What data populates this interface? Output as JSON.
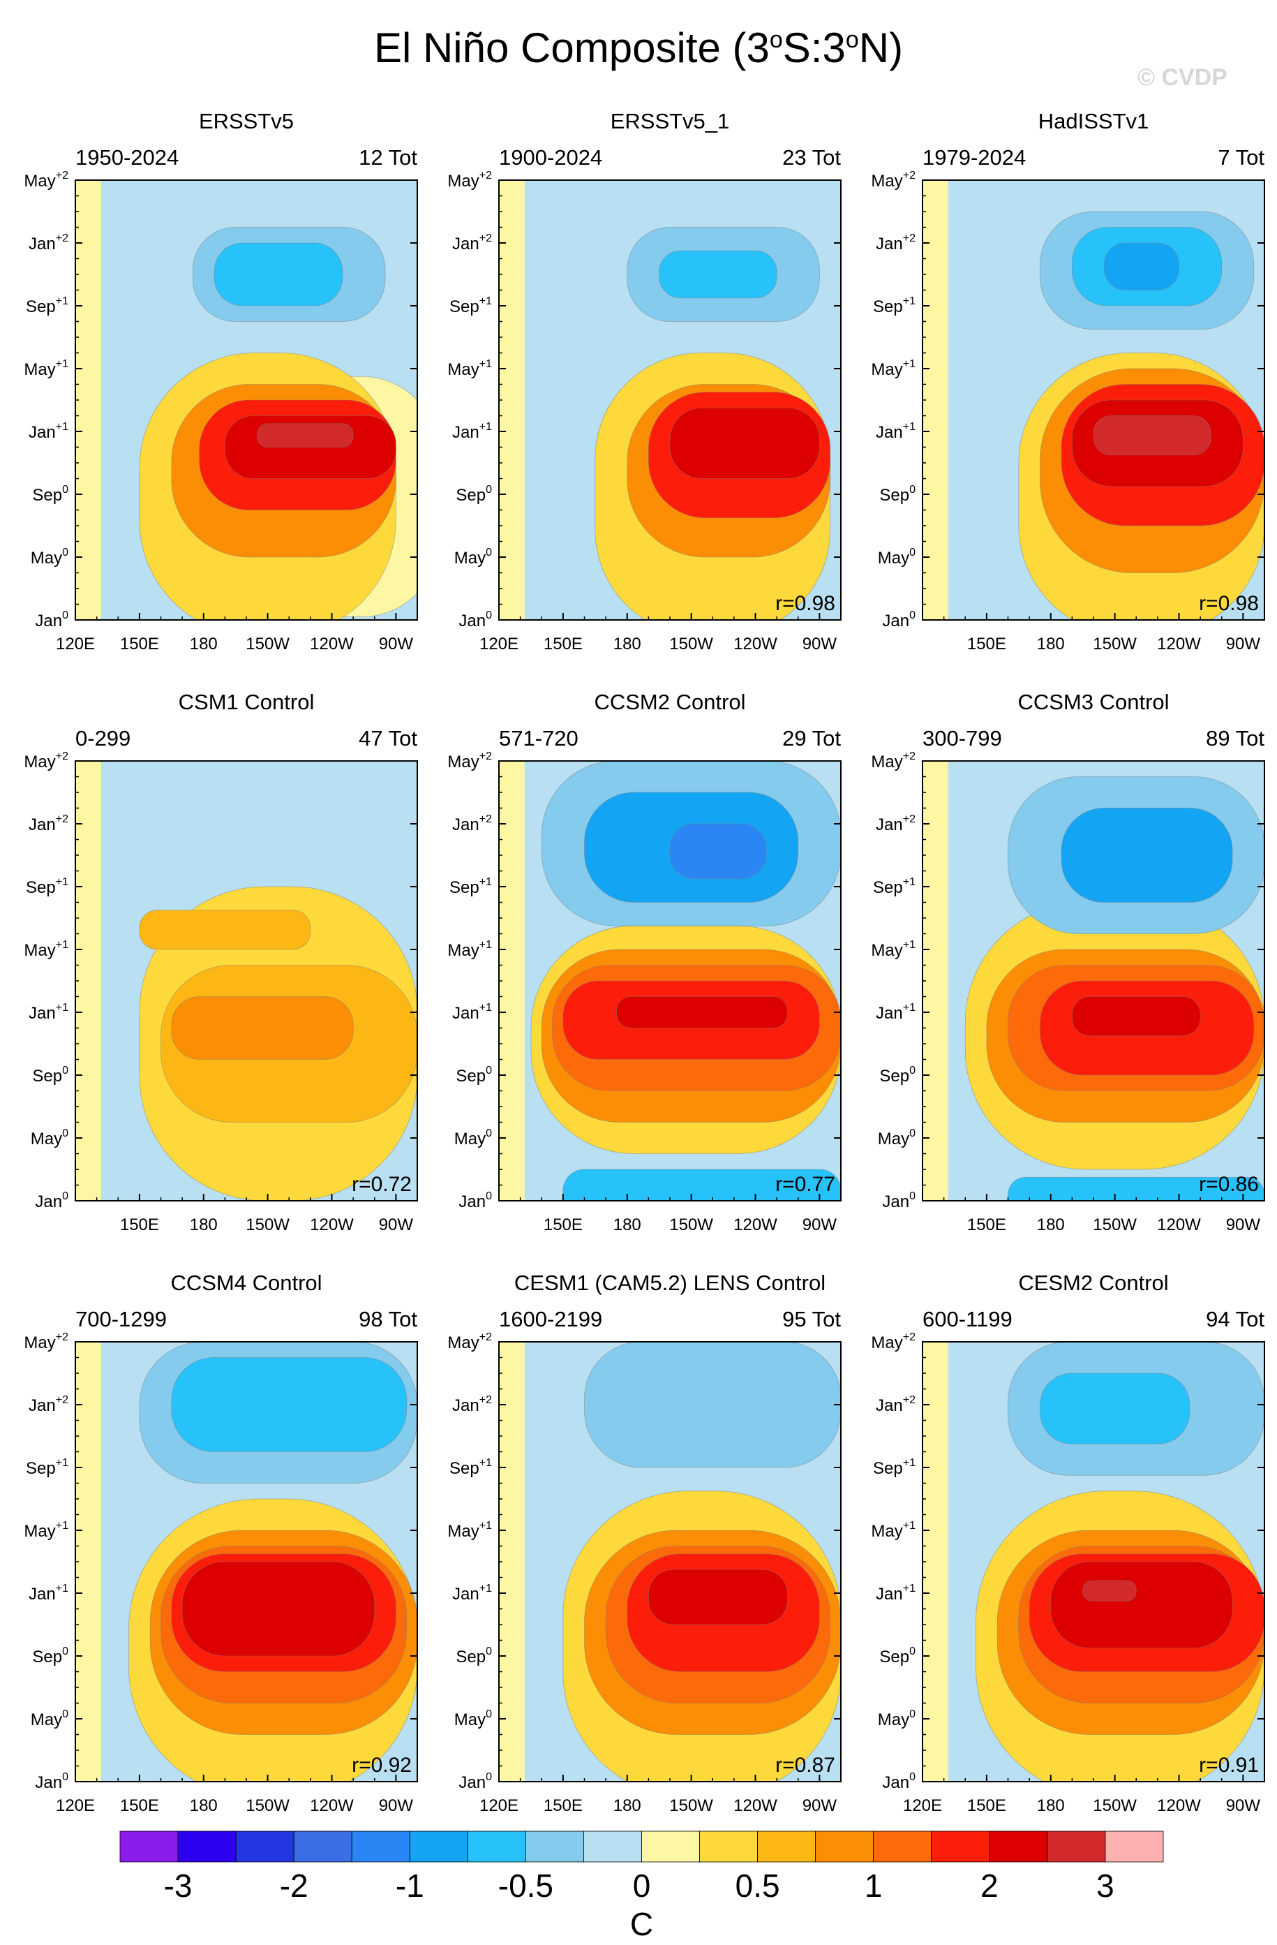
{
  "figure": {
    "title_main": "El Niño Composite (3",
    "title_lat1": "S:3",
    "title_lat2": "N)",
    "degree_symbol": "o",
    "watermark": "© CVDP"
  },
  "chart_data": {
    "type": "heatmap",
    "y_ticks": [
      {
        "month": "Jan",
        "year": "0"
      },
      {
        "month": "May",
        "year": "0"
      },
      {
        "month": "Sep",
        "year": "0"
      },
      {
        "month": "Jan",
        "year": "+1"
      },
      {
        "month": "May",
        "year": "+1"
      },
      {
        "month": "Sep",
        "year": "+1"
      },
      {
        "month": "Jan",
        "year": "+2"
      },
      {
        "month": "May",
        "year": "+2"
      }
    ],
    "x_ticks_full": [
      "120E",
      "150E",
      "180",
      "150W",
      "120W",
      "90W"
    ],
    "colorbar": {
      "unit": "C",
      "tick_labels": [
        "-3",
        "-2",
        "-1",
        "-0.5",
        "0",
        "0.5",
        "1",
        "2",
        "3"
      ],
      "colors": [
        "#8c1cec",
        "#2d00f0",
        "#2236e4",
        "#3a6ee4",
        "#2a86f4",
        "#14a4f4",
        "#28c2fa",
        "#84cbee",
        "#b8dff2",
        "#fdf7a4",
        "#fdd93c",
        "#fcb714",
        "#fc8e06",
        "#fc6a0a",
        "#fc1e0a",
        "#dc0000",
        "#d22a2a",
        "#fcb0b0"
      ]
    },
    "panels": [
      {
        "title": "ERSSTv5",
        "period": "1950-2024",
        "count": "12 Tot",
        "r": "",
        "x_ticks": [
          "120E",
          "150E",
          "180",
          "150W",
          "120W",
          "90W"
        ],
        "features": [
          {
            "level": 9,
            "x": [
              210,
              290
            ],
            "y": [
              0.2,
              15.5
            ],
            "kind": "tongue"
          },
          {
            "level": 10,
            "x": [
              150,
              270
            ],
            "y": [
              -1,
              17
            ],
            "kind": "warm-band"
          },
          {
            "level": 12,
            "x": [
              165,
              270
            ],
            "y": [
              4,
              15
            ],
            "kind": "core"
          },
          {
            "level": 14,
            "x": [
              178,
              270
            ],
            "y": [
              7,
              14
            ],
            "kind": "core"
          },
          {
            "level": 15,
            "x": [
              190,
              270
            ],
            "y": [
              9,
              13
            ],
            "kind": "core"
          },
          {
            "level": 16,
            "x": [
              205,
              250
            ],
            "y": [
              11,
              12.5
            ],
            "kind": "core"
          },
          {
            "level": 7,
            "x": [
              175,
              265
            ],
            "y": [
              19,
              25
            ],
            "kind": "cool"
          },
          {
            "level": 6,
            "x": [
              185,
              245
            ],
            "y": [
              20,
              24
            ],
            "kind": "cool"
          }
        ]
      },
      {
        "title": "ERSSTv5_1",
        "period": "1900-2024",
        "count": "23 Tot",
        "r": "r=0.98",
        "x_ticks": [
          "120E",
          "150E",
          "180",
          "150W",
          "120W",
          "90W"
        ],
        "features": [
          {
            "level": 10,
            "x": [
              165,
              275
            ],
            "y": [
              -1,
              17
            ],
            "kind": "warm-band"
          },
          {
            "level": 12,
            "x": [
              180,
              275
            ],
            "y": [
              4,
              15
            ],
            "kind": "core"
          },
          {
            "level": 14,
            "x": [
              190,
              275
            ],
            "y": [
              6.5,
              14.5
            ],
            "kind": "core"
          },
          {
            "level": 15,
            "x": [
              200,
              270
            ],
            "y": [
              9,
              13.5
            ],
            "kind": "core"
          },
          {
            "level": 7,
            "x": [
              180,
              270
            ],
            "y": [
              19,
              25
            ],
            "kind": "cool"
          },
          {
            "level": 6,
            "x": [
              195,
              250
            ],
            "y": [
              20.5,
              23.5
            ],
            "kind": "cool"
          }
        ]
      },
      {
        "title": "HadISSTv1",
        "period": "1979-2024",
        "count": "7 Tot",
        "r": "r=0.98",
        "x_ticks": [
          "150E",
          "180",
          "150W",
          "120W",
          "90W"
        ],
        "features": [
          {
            "level": 10,
            "x": [
              165,
              280
            ],
            "y": [
              -1,
              17
            ],
            "kind": "warm-band"
          },
          {
            "level": 12,
            "x": [
              175,
              280
            ],
            "y": [
              3,
              16
            ],
            "kind": "core"
          },
          {
            "level": 14,
            "x": [
              185,
              280
            ],
            "y": [
              6,
              15
            ],
            "kind": "core"
          },
          {
            "level": 15,
            "x": [
              190,
              270
            ],
            "y": [
              8.5,
              14
            ],
            "kind": "core"
          },
          {
            "level": 16,
            "x": [
              200,
              255
            ],
            "y": [
              10.5,
              13
            ],
            "kind": "core"
          },
          {
            "level": 7,
            "x": [
              175,
              275
            ],
            "y": [
              18.5,
              26
            ],
            "kind": "cool"
          },
          {
            "level": 6,
            "x": [
              190,
              260
            ],
            "y": [
              20,
              25
            ],
            "kind": "cool"
          },
          {
            "level": 5,
            "x": [
              205,
              240
            ],
            "y": [
              21,
              24
            ],
            "kind": "cool"
          }
        ]
      },
      {
        "title": "CSM1 Control",
        "period": "0-299",
        "count": "47 Tot",
        "r": "r=0.72",
        "x_ticks": [
          "150E",
          "180",
          "150W",
          "120W",
          "90W"
        ],
        "features": [
          {
            "level": 10,
            "x": [
              150,
              280
            ],
            "y": [
              0,
              20
            ],
            "kind": "warm-band"
          },
          {
            "level": 11,
            "x": [
              160,
              280
            ],
            "y": [
              5,
              15
            ],
            "kind": "core"
          },
          {
            "level": 12,
            "x": [
              165,
              250
            ],
            "y": [
              9,
              13
            ],
            "kind": "core"
          },
          {
            "level": 11,
            "x": [
              150,
              230
            ],
            "y": [
              16,
              18.5
            ],
            "kind": "core"
          }
        ]
      },
      {
        "title": "CCSM2 Control",
        "period": "571-720",
        "count": "29 Tot",
        "r": "r=0.77",
        "x_ticks": [
          "150E",
          "180",
          "150W",
          "120W",
          "90W"
        ],
        "features": [
          {
            "level": 10,
            "x": [
              135,
              280
            ],
            "y": [
              3,
              17.5
            ],
            "kind": "warm-band"
          },
          {
            "level": 12,
            "x": [
              140,
              280
            ],
            "y": [
              5,
              16
            ],
            "kind": "core"
          },
          {
            "level": 13,
            "x": [
              145,
              280
            ],
            "y": [
              7,
              15
            ],
            "kind": "core"
          },
          {
            "level": 14,
            "x": [
              150,
              270
            ],
            "y": [
              9,
              14
            ],
            "kind": "core"
          },
          {
            "level": 15,
            "x": [
              175,
              255
            ],
            "y": [
              11,
              13
            ],
            "kind": "core"
          },
          {
            "level": 7,
            "x": [
              140,
              280
            ],
            "y": [
              17.5,
              28
            ],
            "kind": "cool"
          },
          {
            "level": 5,
            "x": [
              160,
              260
            ],
            "y": [
              19,
              26
            ],
            "kind": "cool"
          },
          {
            "level": 4,
            "x": [
              200,
              245
            ],
            "y": [
              20.5,
              24
            ],
            "kind": "cool"
          },
          {
            "level": 6,
            "x": [
              150,
              280
            ],
            "y": [
              -1,
              2
            ],
            "kind": "cool"
          }
        ]
      },
      {
        "title": "CCSM3 Control",
        "period": "300-799",
        "count": "89 Tot",
        "r": "r=0.86",
        "x_ticks": [
          "150E",
          "180",
          "150W",
          "120W",
          "90W"
        ],
        "features": [
          {
            "level": 10,
            "x": [
              140,
              280
            ],
            "y": [
              2,
              19
            ],
            "kind": "warm-band"
          },
          {
            "level": 12,
            "x": [
              150,
              280
            ],
            "y": [
              5,
              16
            ],
            "kind": "core"
          },
          {
            "level": 13,
            "x": [
              160,
              280
            ],
            "y": [
              7,
              15
            ],
            "kind": "core"
          },
          {
            "level": 14,
            "x": [
              175,
              275
            ],
            "y": [
              8,
              14
            ],
            "kind": "core"
          },
          {
            "level": 15,
            "x": [
              190,
              250
            ],
            "y": [
              10.5,
              13
            ],
            "kind": "core"
          },
          {
            "level": 7,
            "x": [
              160,
              280
            ],
            "y": [
              17,
              27
            ],
            "kind": "cool"
          },
          {
            "level": 5,
            "x": [
              185,
              265
            ],
            "y": [
              19,
              25
            ],
            "kind": "cool"
          },
          {
            "level": 6,
            "x": [
              160,
              280
            ],
            "y": [
              -1,
              1.5
            ],
            "kind": "cool"
          }
        ]
      },
      {
        "title": "CCSM4 Control",
        "period": "700-1299",
        "count": "98 Tot",
        "r": "r=0.92",
        "x_ticks": [
          "120E",
          "150E",
          "180",
          "150W",
          "120W",
          "90W"
        ],
        "features": [
          {
            "level": 10,
            "x": [
              145,
              280
            ],
            "y": [
              -1,
              18
            ],
            "kind": "warm-band"
          },
          {
            "level": 12,
            "x": [
              155,
              280
            ],
            "y": [
              3,
              16
            ],
            "kind": "core"
          },
          {
            "level": 13,
            "x": [
              160,
              275
            ],
            "y": [
              5,
              15
            ],
            "kind": "core"
          },
          {
            "level": 14,
            "x": [
              165,
              270
            ],
            "y": [
              7,
              14.5
            ],
            "kind": "core"
          },
          {
            "level": 15,
            "x": [
              170,
              260
            ],
            "y": [
              8,
              14
            ],
            "kind": "core"
          },
          {
            "level": 7,
            "x": [
              150,
              280
            ],
            "y": [
              19,
              28
            ],
            "kind": "cool"
          },
          {
            "level": 6,
            "x": [
              165,
              275
            ],
            "y": [
              21,
              27
            ],
            "kind": "cool"
          }
        ]
      },
      {
        "title": "CESM1 (CAM5.2) LENS Control",
        "period": "1600-2199",
        "count": "95 Tot",
        "r": "r=0.87",
        "x_ticks": [
          "120E",
          "150E",
          "180",
          "150W",
          "120W",
          "90W"
        ],
        "features": [
          {
            "level": 10,
            "x": [
              150,
              280
            ],
            "y": [
              -1,
              18.5
            ],
            "kind": "warm-band"
          },
          {
            "level": 12,
            "x": [
              160,
              280
            ],
            "y": [
              3,
              16
            ],
            "kind": "core"
          },
          {
            "level": 13,
            "x": [
              170,
              275
            ],
            "y": [
              5,
              15
            ],
            "kind": "core"
          },
          {
            "level": 14,
            "x": [
              180,
              270
            ],
            "y": [
              7,
              14.5
            ],
            "kind": "core"
          },
          {
            "level": 15,
            "x": [
              190,
              255
            ],
            "y": [
              10,
              13.5
            ],
            "kind": "core"
          },
          {
            "level": 7,
            "x": [
              160,
              280
            ],
            "y": [
              20,
              28
            ],
            "kind": "cool"
          }
        ]
      },
      {
        "title": "CESM2 Control",
        "period": "600-1199",
        "count": "94 Tot",
        "r": "r=0.91",
        "x_ticks": [
          "120E",
          "150E",
          "180",
          "150W",
          "120W",
          "90W"
        ],
        "features": [
          {
            "level": 10,
            "x": [
              145,
              280
            ],
            "y": [
              -1,
              18.5
            ],
            "kind": "warm-band"
          },
          {
            "level": 12,
            "x": [
              155,
              280
            ],
            "y": [
              3,
              16
            ],
            "kind": "core"
          },
          {
            "level": 13,
            "x": [
              165,
              280
            ],
            "y": [
              5,
              15
            ],
            "kind": "core"
          },
          {
            "level": 14,
            "x": [
              170,
              280
            ],
            "y": [
              7,
              14.5
            ],
            "kind": "core"
          },
          {
            "level": 15,
            "x": [
              180,
              265
            ],
            "y": [
              8.5,
              14
            ],
            "kind": "core"
          },
          {
            "level": 16,
            "x": [
              195,
              220
            ],
            "y": [
              11.5,
              12.8
            ],
            "kind": "core"
          },
          {
            "level": 7,
            "x": [
              160,
              280
            ],
            "y": [
              19.5,
              28
            ],
            "kind": "cool"
          },
          {
            "level": 6,
            "x": [
              175,
              245
            ],
            "y": [
              21.5,
              26
            ],
            "kind": "cool"
          }
        ]
      }
    ]
  }
}
